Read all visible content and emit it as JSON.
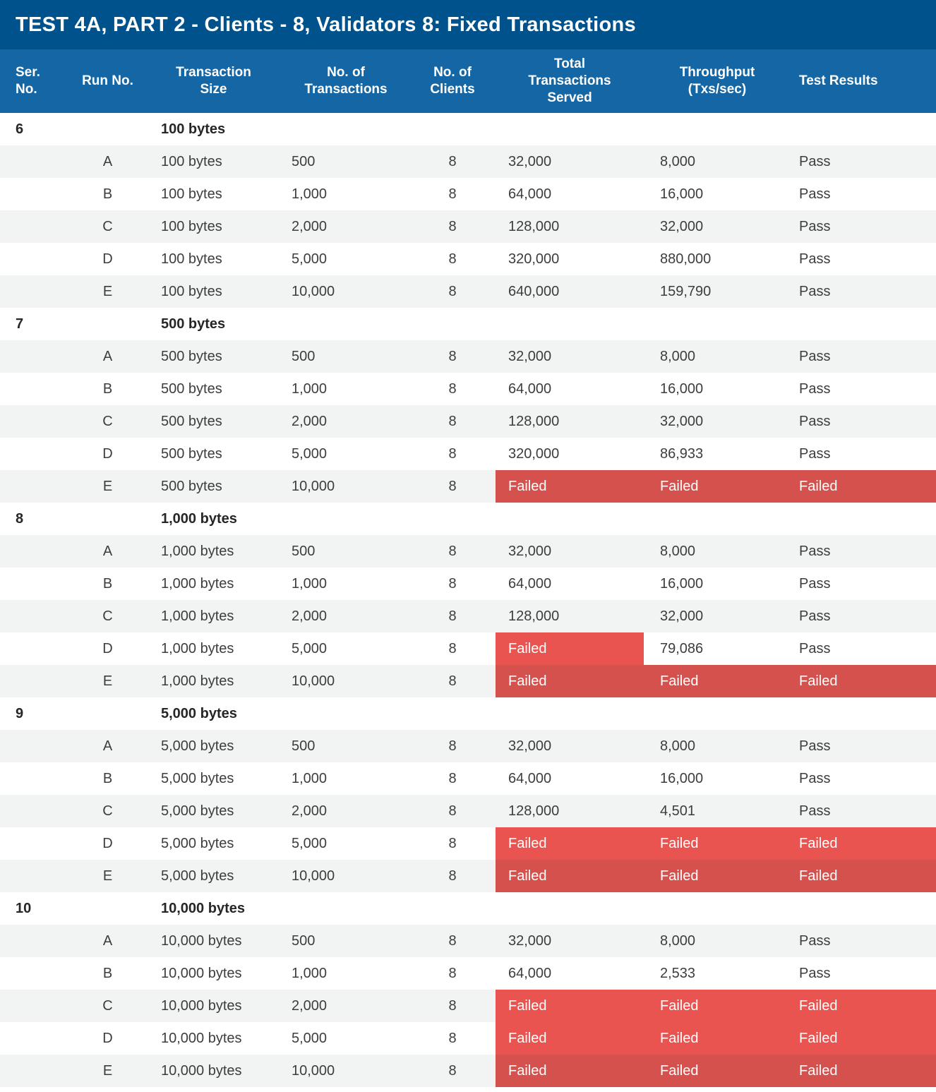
{
  "title": "TEST 4A, PART 2 - Clients - 8, Validators 8: Fixed Transactions",
  "colors": {
    "title_bg": "#00528c",
    "header_bg": "#1566a4",
    "stripe": "#f2f3f3",
    "fail_red": "#ea5450",
    "fail_red_dark": "#d5514e",
    "text": "#3d3d3d"
  },
  "columns": [
    {
      "id": "ser",
      "label": "Ser.\nNo."
    },
    {
      "id": "run",
      "label": "Run No."
    },
    {
      "id": "size",
      "label": "Transaction\nSize"
    },
    {
      "id": "txs",
      "label": "No. of\nTransactions"
    },
    {
      "id": "clients",
      "label": "No. of\nClients"
    },
    {
      "id": "served",
      "label": "Total\nTransactions\nServed"
    },
    {
      "id": "throughput",
      "label": "Throughput\n(Txs/sec)"
    },
    {
      "id": "results",
      "label": "Test Results"
    }
  ],
  "groups": [
    {
      "ser": "6",
      "size_label": "100 bytes",
      "rows": [
        {
          "run": "A",
          "size": "100 bytes",
          "txs": "500",
          "clients": "8",
          "served": "32,000",
          "throughput": "8,000",
          "result": "Pass"
        },
        {
          "run": "B",
          "size": "100 bytes",
          "txs": "1,000",
          "clients": "8",
          "served": "64,000",
          "throughput": "16,000",
          "result": "Pass"
        },
        {
          "run": "C",
          "size": "100 bytes",
          "txs": "2,000",
          "clients": "8",
          "served": "128,000",
          "throughput": "32,000",
          "result": "Pass"
        },
        {
          "run": "D",
          "size": "100 bytes",
          "txs": "5,000",
          "clients": "8",
          "served": "320,000",
          "throughput": "880,000",
          "result": "Pass"
        },
        {
          "run": "E",
          "size": "100 bytes",
          "txs": "10,000",
          "clients": "8",
          "served": "640,000",
          "throughput": "159,790",
          "result": "Pass"
        }
      ]
    },
    {
      "ser": "7",
      "size_label": "500 bytes",
      "rows": [
        {
          "run": "A",
          "size": "500 bytes",
          "txs": "500",
          "clients": "8",
          "served": "32,000",
          "throughput": "8,000",
          "result": "Pass"
        },
        {
          "run": "B",
          "size": "500 bytes",
          "txs": "1,000",
          "clients": "8",
          "served": "64,000",
          "throughput": "16,000",
          "result": "Pass"
        },
        {
          "run": "C",
          "size": "500 bytes",
          "txs": "2,000",
          "clients": "8",
          "served": "128,000",
          "throughput": "32,000",
          "result": "Pass"
        },
        {
          "run": "D",
          "size": "500 bytes",
          "txs": "5,000",
          "clients": "8",
          "served": "320,000",
          "throughput": "86,933",
          "result": "Pass"
        },
        {
          "run": "E",
          "size": "500 bytes",
          "txs": "10,000",
          "clients": "8",
          "served": "Failed",
          "throughput": "Failed",
          "result": "Failed",
          "fail_shade": "dark"
        }
      ]
    },
    {
      "ser": "8",
      "size_label": "1,000 bytes",
      "rows": [
        {
          "run": "A",
          "size": "1,000 bytes",
          "txs": "500",
          "clients": "8",
          "served": "32,000",
          "throughput": "8,000",
          "result": "Pass"
        },
        {
          "run": "B",
          "size": "1,000 bytes",
          "txs": "1,000",
          "clients": "8",
          "served": "64,000",
          "throughput": "16,000",
          "result": "Pass"
        },
        {
          "run": "C",
          "size": "1,000 bytes",
          "txs": "2,000",
          "clients": "8",
          "served": "128,000",
          "throughput": "32,000",
          "result": "Pass"
        },
        {
          "run": "D",
          "size": "1,000 bytes",
          "txs": "5,000",
          "clients": "8",
          "served": "Failed",
          "throughput": "79,086",
          "result": "Pass",
          "fail_shade": "bright"
        },
        {
          "run": "E",
          "size": "1,000 bytes",
          "txs": "10,000",
          "clients": "8",
          "served": "Failed",
          "throughput": "Failed",
          "result": "Failed",
          "fail_shade": "dark"
        }
      ]
    },
    {
      "ser": "9",
      "size_label": "5,000 bytes",
      "rows": [
        {
          "run": "A",
          "size": "5,000 bytes",
          "txs": "500",
          "clients": "8",
          "served": "32,000",
          "throughput": "8,000",
          "result": "Pass"
        },
        {
          "run": "B",
          "size": "5,000 bytes",
          "txs": "1,000",
          "clients": "8",
          "served": "64,000",
          "throughput": "16,000",
          "result": "Pass"
        },
        {
          "run": "C",
          "size": "5,000 bytes",
          "txs": "2,000",
          "clients": "8",
          "served": "128,000",
          "throughput": "4,501",
          "result": "Pass"
        },
        {
          "run": "D",
          "size": "5,000 bytes",
          "txs": "5,000",
          "clients": "8",
          "served": "Failed",
          "throughput": "Failed",
          "result": "Failed",
          "fail_shade": "bright"
        },
        {
          "run": "E",
          "size": "5,000 bytes",
          "txs": "10,000",
          "clients": "8",
          "served": "Failed",
          "throughput": "Failed",
          "result": "Failed",
          "fail_shade": "dark"
        }
      ]
    },
    {
      "ser": "10",
      "size_label": "10,000 bytes",
      "rows": [
        {
          "run": "A",
          "size": "10,000 bytes",
          "txs": "500",
          "clients": "8",
          "served": "32,000",
          "throughput": "8,000",
          "result": "Pass"
        },
        {
          "run": "B",
          "size": "10,000 bytes",
          "txs": "1,000",
          "clients": "8",
          "served": "64,000",
          "throughput": "2,533",
          "result": "Pass"
        },
        {
          "run": "C",
          "size": "10,000 bytes",
          "txs": "2,000",
          "clients": "8",
          "served": "Failed",
          "throughput": "Failed",
          "result": "Failed",
          "fail_shade": "bright"
        },
        {
          "run": "D",
          "size": "10,000 bytes",
          "txs": "5,000",
          "clients": "8",
          "served": "Failed",
          "throughput": "Failed",
          "result": "Failed",
          "fail_shade": "bright"
        },
        {
          "run": "E",
          "size": "10,000 bytes",
          "txs": "10,000",
          "clients": "8",
          "served": "Failed",
          "throughput": "Failed",
          "result": "Failed",
          "fail_shade": "dark"
        }
      ]
    }
  ],
  "chart_data": {
    "type": "table",
    "title": "TEST 4A, PART 2 - Clients - 8, Validators 8: Fixed Transactions",
    "columns": [
      "Ser. No.",
      "Run No.",
      "Transaction Size",
      "No. of Transactions",
      "No. of Clients",
      "Total Transactions Served",
      "Throughput (Txs/sec)",
      "Test Results"
    ],
    "rows": [
      [
        "6",
        "",
        "100 bytes",
        "",
        "",
        "",
        "",
        ""
      ],
      [
        "",
        "A",
        "100 bytes",
        "500",
        "8",
        "32,000",
        "8,000",
        "Pass"
      ],
      [
        "",
        "B",
        "100 bytes",
        "1,000",
        "8",
        "64,000",
        "16,000",
        "Pass"
      ],
      [
        "",
        "C",
        "100 bytes",
        "2,000",
        "8",
        "128,000",
        "32,000",
        "Pass"
      ],
      [
        "",
        "D",
        "100 bytes",
        "5,000",
        "8",
        "320,000",
        "880,000",
        "Pass"
      ],
      [
        "",
        "E",
        "100 bytes",
        "10,000",
        "8",
        "640,000",
        "159,790",
        "Pass"
      ],
      [
        "7",
        "",
        "500 bytes",
        "",
        "",
        "",
        "",
        ""
      ],
      [
        "",
        "A",
        "500 bytes",
        "500",
        "8",
        "32,000",
        "8,000",
        "Pass"
      ],
      [
        "",
        "B",
        "500 bytes",
        "1,000",
        "8",
        "64,000",
        "16,000",
        "Pass"
      ],
      [
        "",
        "C",
        "500 bytes",
        "2,000",
        "8",
        "128,000",
        "32,000",
        "Pass"
      ],
      [
        "",
        "D",
        "500 bytes",
        "5,000",
        "8",
        "320,000",
        "86,933",
        "Pass"
      ],
      [
        "",
        "E",
        "500 bytes",
        "10,000",
        "8",
        "Failed",
        "Failed",
        "Failed"
      ],
      [
        "8",
        "",
        "1,000 bytes",
        "",
        "",
        "",
        "",
        ""
      ],
      [
        "",
        "A",
        "1,000 bytes",
        "500",
        "8",
        "32,000",
        "8,000",
        "Pass"
      ],
      [
        "",
        "B",
        "1,000 bytes",
        "1,000",
        "8",
        "64,000",
        "16,000",
        "Pass"
      ],
      [
        "",
        "C",
        "1,000 bytes",
        "2,000",
        "8",
        "128,000",
        "32,000",
        "Pass"
      ],
      [
        "",
        "D",
        "1,000 bytes",
        "5,000",
        "8",
        "Failed",
        "79,086",
        "Pass"
      ],
      [
        "",
        "E",
        "1,000 bytes",
        "10,000",
        "8",
        "Failed",
        "Failed",
        "Failed"
      ],
      [
        "9",
        "",
        "5,000 bytes",
        "",
        "",
        "",
        "",
        ""
      ],
      [
        "",
        "A",
        "5,000 bytes",
        "500",
        "8",
        "32,000",
        "8,000",
        "Pass"
      ],
      [
        "",
        "B",
        "5,000 bytes",
        "1,000",
        "8",
        "64,000",
        "16,000",
        "Pass"
      ],
      [
        "",
        "C",
        "5,000 bytes",
        "2,000",
        "8",
        "128,000",
        "4,501",
        "Pass"
      ],
      [
        "",
        "D",
        "5,000 bytes",
        "5,000",
        "8",
        "Failed",
        "Failed",
        "Failed"
      ],
      [
        "",
        "E",
        "5,000 bytes",
        "10,000",
        "8",
        "Failed",
        "Failed",
        "Failed"
      ],
      [
        "10",
        "",
        "10,000 bytes",
        "",
        "",
        "",
        "",
        ""
      ],
      [
        "",
        "A",
        "10,000 bytes",
        "500",
        "8",
        "32,000",
        "8,000",
        "Pass"
      ],
      [
        "",
        "B",
        "10,000 bytes",
        "1,000",
        "8",
        "64,000",
        "2,533",
        "Pass"
      ],
      [
        "",
        "C",
        "10,000 bytes",
        "2,000",
        "8",
        "Failed",
        "Failed",
        "Failed"
      ],
      [
        "",
        "D",
        "10,000 bytes",
        "5,000",
        "8",
        "Failed",
        "Failed",
        "Failed"
      ],
      [
        "",
        "E",
        "10,000 bytes",
        "10,000",
        "8",
        "Failed",
        "Failed",
        "Failed"
      ]
    ]
  }
}
